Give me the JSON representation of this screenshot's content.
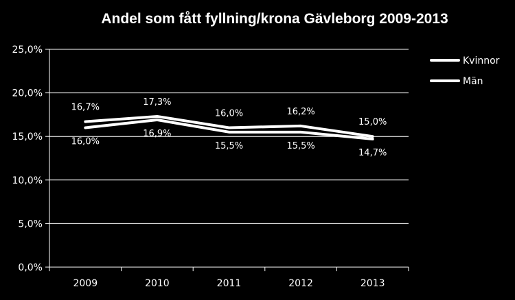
{
  "chart_data": {
    "type": "line",
    "title": "Andel  som fått fyllning/krona Gävleborg 2009-2013",
    "xlabel": "",
    "ylabel": "",
    "categories": [
      "2009",
      "2010",
      "2011",
      "2012",
      "2013"
    ],
    "ylim": [
      0,
      25
    ],
    "yticks": [
      "0,0%",
      "5,0%",
      "10,0%",
      "15,0%",
      "20,0%",
      "25,0%"
    ],
    "grid": true,
    "legend_position": "right",
    "series": [
      {
        "name": "Kvinnor",
        "values": [
          16.7,
          17.3,
          16.0,
          16.2,
          15.0
        ],
        "labels": [
          "16,7%",
          "17,3%",
          "16,0%",
          "16,2%",
          "15,0%"
        ],
        "color": "#ffffff"
      },
      {
        "name": "Män",
        "values": [
          16.0,
          16.9,
          15.5,
          15.5,
          14.7
        ],
        "labels": [
          "16,0%",
          "16,9%",
          "15,5%",
          "15,5%",
          "14,7%"
        ],
        "color": "#ffffff"
      }
    ],
    "colors": {
      "background": "#000000",
      "text": "#ffffff",
      "grid": "#ffffff"
    }
  }
}
